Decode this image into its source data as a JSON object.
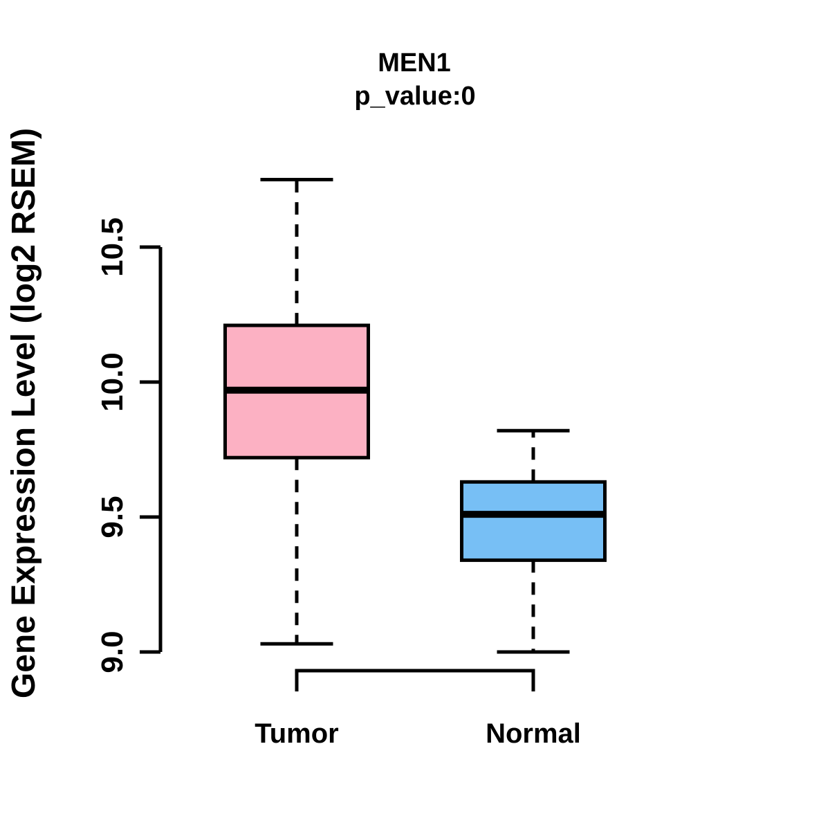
{
  "figure": {
    "background": "#FFFFFF",
    "text_color": "#000000"
  },
  "chart_data": {
    "type": "boxplot",
    "title": "MEN1",
    "subtitle": "p_value:0",
    "ylabel": "Gene Expression Level (log2 RSEM)",
    "xlabel": "",
    "categories": [
      "Tumor",
      "Normal"
    ],
    "series": [
      {
        "name": "Tumor",
        "color": "#FCB1C3",
        "whisker_low": 9.03,
        "q1": 9.72,
        "median": 9.97,
        "q3": 10.21,
        "whisker_high": 10.75
      },
      {
        "name": "Normal",
        "color": "#77BFF5",
        "whisker_low": 9.0,
        "q1": 9.34,
        "median": 9.51,
        "q3": 9.63,
        "whisker_high": 9.82
      }
    ],
    "y_axis": {
      "range": [
        9.0,
        10.5
      ],
      "ticks": [
        9.0,
        9.5,
        10.0,
        10.5
      ],
      "tick_labels": [
        "9.0",
        "9.5",
        "10.0",
        "10.5"
      ]
    },
    "styles": {
      "box_border_color": "#000000",
      "median_color": "#000000",
      "axis_color": "#000000",
      "whisker_line_style": "dashed"
    },
    "grid": false,
    "legend_position": "none"
  }
}
